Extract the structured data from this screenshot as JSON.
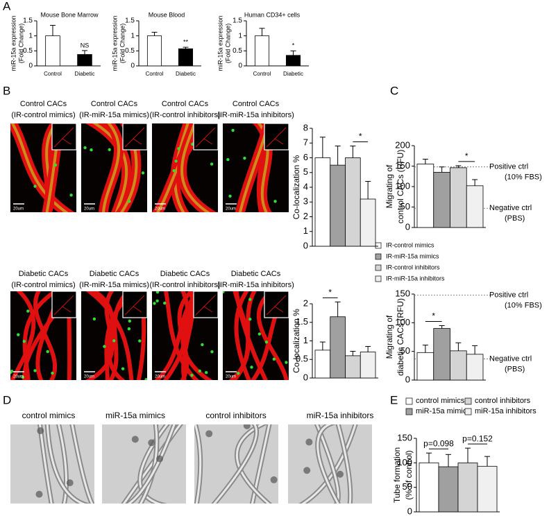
{
  "panel_labels": [
    "A",
    "B",
    "C",
    "D",
    "E"
  ],
  "b_images": {
    "top": [
      {
        "title": [
          "Control CACs",
          "(IR-control mimics)"
        ],
        "scale": "20um"
      },
      {
        "title": [
          "Control CACs",
          "(IR-miR-15a mimics)"
        ],
        "scale": "20um"
      },
      {
        "title": [
          "Control CACs",
          "(IR-control inhibitors)"
        ],
        "scale": "20um"
      },
      {
        "title": [
          "Control CACs",
          "(IR-miR-15a inhibitors)"
        ],
        "scale": "20um"
      }
    ],
    "bottom": [
      {
        "title": [
          "Diabetic CACs",
          "(IR-control mimics)"
        ],
        "scale": "20um"
      },
      {
        "title": [
          "Diabetic CACs",
          "(IR-miR-15a mimics)"
        ],
        "scale": "20um"
      },
      {
        "title": [
          "Diabetic CACs",
          "(IR-control inhibitors)"
        ],
        "scale": "20um"
      },
      {
        "title": [
          "Diabetic CACs",
          "(IR-miR-15a inhibitors)"
        ],
        "scale": "20um"
      }
    ]
  },
  "d_images": [
    "control mimics",
    "miR-15a mimics",
    "control inhibitors",
    "miR-15a inhibitors"
  ],
  "legend_c": [
    {
      "name": "IR-control mimics",
      "color": "#ffffff"
    },
    {
      "name": "IR-miR-15a mimics",
      "color": "#a0a0a0"
    },
    {
      "name": "IR-control inhibitors",
      "color": "#d4d4d4"
    },
    {
      "name": "IR-miR-15a inhibitors",
      "color": "#f0f0f0"
    }
  ],
  "legend_e": [
    {
      "name": "control mimics",
      "color": "#ffffff"
    },
    {
      "name": "miR-15a mimics",
      "color": "#a0a0a0"
    },
    {
      "name": "control inhibitors",
      "color": "#d4d4d4"
    },
    {
      "name": "miR-15a inhibitors",
      "color": "#f0f0f0"
    }
  ],
  "chart_data": [
    {
      "type": "bar",
      "title": "Mouse Bone Marrow",
      "ylabel": [
        "miR-15a expression",
        "(Fold Change)"
      ],
      "categories": [
        "Control",
        "Diabetic"
      ],
      "values": [
        1,
        0.38
      ],
      "errors": [
        0.35,
        0.13
      ],
      "colors": [
        "#ffffff",
        "#000000"
      ],
      "ylim": [
        0,
        1.5
      ],
      "yticks": [
        0,
        0.5,
        1,
        1.5
      ],
      "annotations": [
        "NS"
      ]
    },
    {
      "type": "bar",
      "title": "Mouse Blood",
      "ylabel": [
        "miR-15a expression",
        "(Fold Change)"
      ],
      "categories": [
        "Control",
        "Diabetic"
      ],
      "values": [
        1,
        0.57
      ],
      "errors": [
        0.12,
        0.05
      ],
      "colors": [
        "#ffffff",
        "#000000"
      ],
      "ylim": [
        0,
        1.5
      ],
      "yticks": [
        0,
        0.5,
        1,
        1.5
      ],
      "annotations": [
        "**"
      ]
    },
    {
      "type": "bar",
      "title": "Human CD34+ cells",
      "ylabel": [
        "miR-15a expression",
        "(Fold Change)"
      ],
      "categories": [
        "Control",
        "Diabetic"
      ],
      "values": [
        1,
        0.35
      ],
      "errors": [
        0.25,
        0.15
      ],
      "colors": [
        "#ffffff",
        "#000000"
      ],
      "ylim": [
        0,
        1.5
      ],
      "yticks": [
        0,
        0.5,
        1,
        1.5
      ],
      "annotations": [
        "*"
      ]
    },
    {
      "type": "bar",
      "ylabel": [
        "Co-localization %"
      ],
      "categories": [
        null,
        null,
        null,
        null
      ],
      "values": [
        6.0,
        5.5,
        6.0,
        3.2
      ],
      "errors": [
        1.4,
        1.3,
        0.8,
        1.2
      ],
      "colors": [
        "#ffffff",
        "#a0a0a0",
        "#d4d4d4",
        "#f0f0f0"
      ],
      "ylim": [
        0,
        8
      ],
      "yticks": [
        0,
        1,
        2,
        3,
        4,
        5,
        6,
        7,
        8
      ],
      "annotations": [
        "*"
      ]
    },
    {
      "type": "bar",
      "ylabel": [
        "Co-localization %"
      ],
      "categories": [
        null,
        null,
        null,
        null
      ],
      "values": [
        0.75,
        1.65,
        0.6,
        0.7
      ],
      "errors": [
        0.22,
        0.4,
        0.12,
        0.15
      ],
      "colors": [
        "#ffffff",
        "#a0a0a0",
        "#d4d4d4",
        "#f0f0f0"
      ],
      "ylim": [
        0,
        2
      ],
      "yticks": [
        0,
        0.5,
        1,
        1.5,
        2
      ],
      "annotations": [
        "*"
      ]
    },
    {
      "type": "bar",
      "ylabel": [
        "Migrating of",
        "control CACs (RFU)"
      ],
      "categories": [
        null,
        null,
        null,
        null
      ],
      "values": [
        155,
        135,
        146,
        102
      ],
      "errors": [
        12,
        13,
        5,
        15
      ],
      "colors": [
        "#ffffff",
        "#a0a0a0",
        "#d4d4d4",
        "#f0f0f0"
      ],
      "ylim": [
        0,
        200
      ],
      "yticks": [
        0,
        50,
        100,
        150,
        200
      ],
      "annotations": [
        "*"
      ],
      "ref_lines": [
        {
          "value": 148,
          "label": [
            "Positive ctrl",
            "(10% FBS)"
          ]
        },
        {
          "value": 47,
          "label": [
            "Negative ctrl",
            "(PBS)"
          ]
        }
      ]
    },
    {
      "type": "bar",
      "ylabel": [
        "Migrating of",
        "diabetic CACs (RFU)"
      ],
      "categories": [
        null,
        null,
        null,
        null
      ],
      "values": [
        48,
        90,
        51,
        45
      ],
      "errors": [
        13,
        5,
        14,
        15
      ],
      "colors": [
        "#ffffff",
        "#a0a0a0",
        "#d4d4d4",
        "#f0f0f0"
      ],
      "ylim": [
        0,
        150
      ],
      "yticks": [
        0,
        50,
        100,
        150
      ],
      "annotations": [
        "*"
      ],
      "ref_lines": [
        {
          "value": 148,
          "label": [
            "Positive ctrl",
            "(10% FBS)"
          ]
        },
        {
          "value": 37,
          "label": [
            "Negative ctrl",
            "(PBS)"
          ]
        }
      ]
    },
    {
      "type": "bar",
      "ylabel": [
        "Tube formation",
        "(% of control)"
      ],
      "categories": [
        null,
        null,
        null,
        null
      ],
      "values": [
        100,
        92,
        100,
        93
      ],
      "errors": [
        20,
        25,
        30,
        20
      ],
      "colors": [
        "#ffffff",
        "#a0a0a0",
        "#d4d4d4",
        "#f0f0f0"
      ],
      "ylim": [
        0,
        150
      ],
      "yticks": [
        0,
        50,
        100,
        150
      ],
      "annotations": [
        "p=0.098",
        "p=0.152"
      ]
    }
  ]
}
